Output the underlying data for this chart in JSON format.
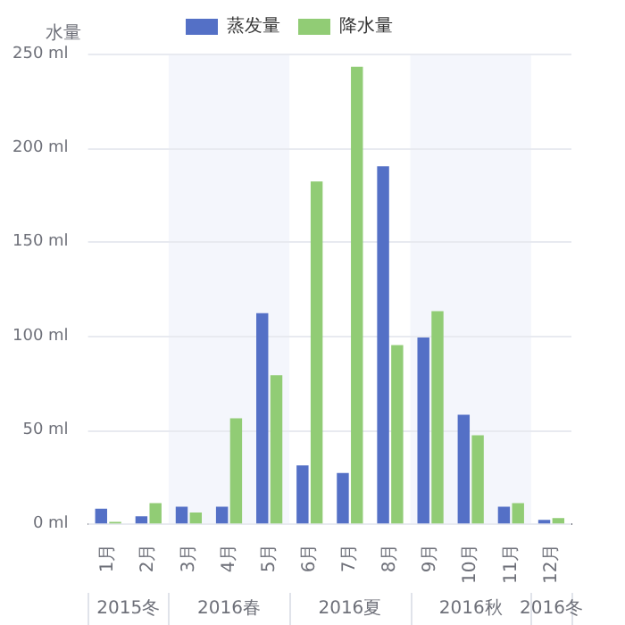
{
  "chart_data": {
    "type": "bar",
    "ylabel": "水量",
    "categories": [
      "1月",
      "2月",
      "3月",
      "4月",
      "5月",
      "6月",
      "7月",
      "8月",
      "9月",
      "10月",
      "11月",
      "12月"
    ],
    "series": [
      {
        "name": "蒸发量",
        "color": "#5470c6",
        "values": [
          8,
          4,
          9,
          9,
          112,
          31,
          27,
          190,
          99,
          58,
          9,
          2
        ]
      },
      {
        "name": "降水量",
        "color": "#91cc75",
        "values": [
          1,
          11,
          6,
          56,
          79,
          182,
          243,
          95,
          113,
          47,
          11,
          3
        ]
      }
    ],
    "ylim": [
      0,
      250
    ],
    "yticks": [
      {
        "value": 0,
        "label": "0 ml"
      },
      {
        "value": 50,
        "label": "50 ml"
      },
      {
        "value": 100,
        "label": "100 ml"
      },
      {
        "value": 150,
        "label": "150 ml"
      },
      {
        "value": 200,
        "label": "200 ml"
      },
      {
        "value": 250,
        "label": "250 ml"
      }
    ],
    "bands": [
      {
        "axis": "x",
        "from": "3月",
        "to": "5月",
        "color": "#f4f6fc"
      },
      {
        "axis": "x",
        "from": "9月",
        "to": "11月",
        "color": "#f4f6fc"
      }
    ],
    "annotations": [
      "2015冬",
      "2016春",
      "2016夏",
      "2016秋",
      "2016冬"
    ],
    "grid": "y",
    "legend": "top"
  }
}
